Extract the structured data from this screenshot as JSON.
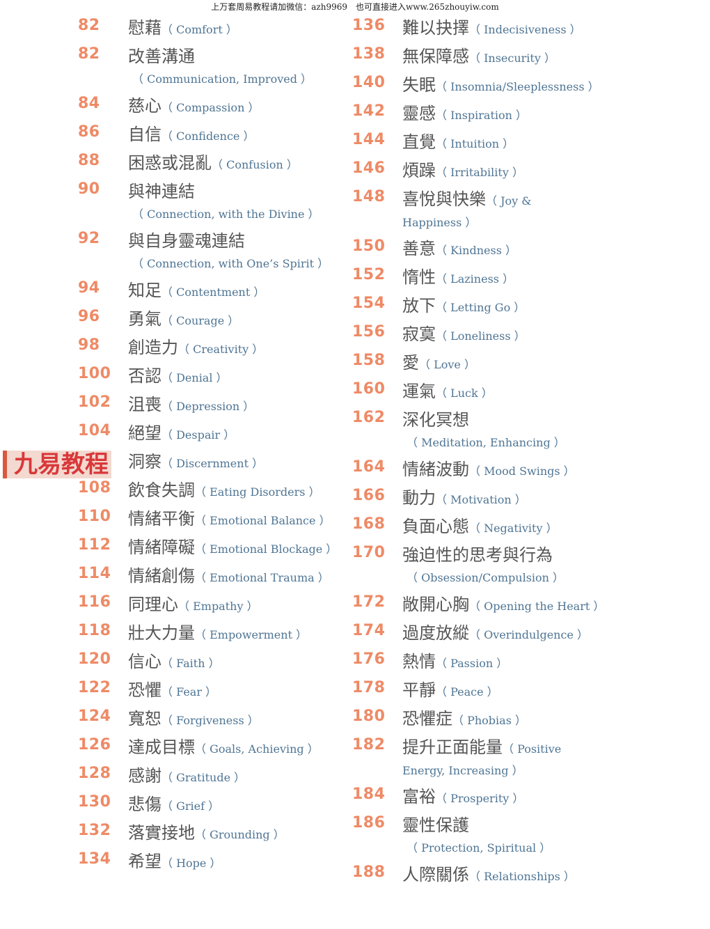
{
  "header": "上万套周易教程请加微信：azh9969　也可直接进入www.265zhouyiw.com",
  "watermark": "九易教程",
  "colors": {
    "number": "#ee8a66",
    "chinese": "#555555",
    "english": "#4f7594"
  },
  "left": [
    {
      "num": "82",
      "zh": "慰藉",
      "en": "（ Comfort ）"
    },
    {
      "num": "82",
      "zh": "改善溝通",
      "en": "（ Communication, Improved ）",
      "below": true
    },
    {
      "num": "84",
      "zh": "慈心",
      "en": "（ Compassion ）"
    },
    {
      "num": "86",
      "zh": "自信",
      "en": "（ Confidence ）"
    },
    {
      "num": "88",
      "zh": "困惑或混亂",
      "en": "（ Confusion ）"
    },
    {
      "num": "90",
      "zh": "與神連結",
      "en": "（ Connection, with the Divine ）",
      "below": true
    },
    {
      "num": "92",
      "zh": "與自身靈魂連結",
      "en": "（ Connection, with One’s Spirit ）",
      "below": true
    },
    {
      "num": "94",
      "zh": "知足",
      "en": "（ Contentment ）"
    },
    {
      "num": "96",
      "zh": "勇氣",
      "en": "（ Courage ）"
    },
    {
      "num": "98",
      "zh": "創造力",
      "en": "（ Creativity ）"
    },
    {
      "num": "100",
      "zh": "否認",
      "en": "（ Denial ）"
    },
    {
      "num": "102",
      "zh": "沮喪",
      "en": "（ Depression ）"
    },
    {
      "num": "104",
      "zh": "絕望",
      "en": "（ Despair ）"
    },
    {
      "num": "",
      "zh": "洞察",
      "en": "（ Discernment ）"
    },
    {
      "num": "108",
      "zh": "飲食失調",
      "en": "（ Eating Disorders ）"
    },
    {
      "num": "110",
      "zh": "情緒平衡",
      "en": "（ Emotional Balance ）"
    },
    {
      "num": "112",
      "zh": "情緒障礙",
      "en": "（ Emotional Blockage ）"
    },
    {
      "num": "114",
      "zh": "情緒創傷",
      "en": "（ Emotional Trauma ）"
    },
    {
      "num": "116",
      "zh": "同理心",
      "en": "（ Empathy ）"
    },
    {
      "num": "118",
      "zh": "壯大力量",
      "en": "（ Empowerment ）"
    },
    {
      "num": "120",
      "zh": "信心",
      "en": "（ Faith ）"
    },
    {
      "num": "122",
      "zh": "恐懼",
      "en": "（ Fear ）"
    },
    {
      "num": "124",
      "zh": "寬恕",
      "en": "（ Forgiveness ）"
    },
    {
      "num": "126",
      "zh": "達成目標",
      "en": "（ Goals, Achieving ）"
    },
    {
      "num": "128",
      "zh": "感謝",
      "en": "（ Gratitude ）"
    },
    {
      "num": "130",
      "zh": "悲傷",
      "en": "（ Grief ）"
    },
    {
      "num": "132",
      "zh": "落實接地",
      "en": "（ Grounding ）"
    },
    {
      "num": "134",
      "zh": "希望",
      "en": "（ Hope ）"
    }
  ],
  "right": [
    {
      "num": "136",
      "zh": "難以抉擇",
      "en": "（ Indecisiveness ）"
    },
    {
      "num": "138",
      "zh": "無保障感",
      "en": "（ Insecurity ）"
    },
    {
      "num": "140",
      "zh": "失眠",
      "en": "（ Insomnia/Sleeplessness ）"
    },
    {
      "num": "142",
      "zh": "靈感",
      "en": "（ Inspiration ）"
    },
    {
      "num": "144",
      "zh": "直覺",
      "en": "（ Intuition ）"
    },
    {
      "num": "146",
      "zh": "煩躁",
      "en": "（ Irritability ）"
    },
    {
      "num": "148",
      "zh": "喜悅與快樂",
      "en": "（ Joy &\nHappiness ）",
      "wrapped": true
    },
    {
      "num": "150",
      "zh": "善意",
      "en": "（ Kindness ）"
    },
    {
      "num": "152",
      "zh": "惰性",
      "en": "（ Laziness ）"
    },
    {
      "num": "154",
      "zh": "放下",
      "en": "（ Letting Go ）"
    },
    {
      "num": "156",
      "zh": "寂寞",
      "en": "（ Loneliness ）"
    },
    {
      "num": "158",
      "zh": "愛",
      "en": "（ Love ）"
    },
    {
      "num": "160",
      "zh": "運氣",
      "en": "（ Luck ）"
    },
    {
      "num": "162",
      "zh": "深化冥想",
      "en": "（ Meditation, Enhancing ）",
      "below": true
    },
    {
      "num": "164",
      "zh": "情緒波動",
      "en": "（ Mood Swings ）"
    },
    {
      "num": "166",
      "zh": "動力",
      "en": "（ Motivation ）"
    },
    {
      "num": "168",
      "zh": "負面心態",
      "en": "（ Negativity ）"
    },
    {
      "num": "170",
      "zh": "強迫性的思考與行為",
      "en": "（ Obsession/Compulsion ）",
      "below": true
    },
    {
      "num": "172",
      "zh": "敞開心胸",
      "en": "（ Opening the Heart ）"
    },
    {
      "num": "174",
      "zh": "過度放縱",
      "en": "（ Overindulgence ）"
    },
    {
      "num": "176",
      "zh": "熱情",
      "en": "（ Passion ）"
    },
    {
      "num": "178",
      "zh": "平靜",
      "en": "（ Peace ）"
    },
    {
      "num": "180",
      "zh": "恐懼症",
      "en": "（ Phobias ）"
    },
    {
      "num": "182",
      "zh": "提升正面能量",
      "en": "（ Positive\nEnergy, Increasing ）",
      "wrapped": true
    },
    {
      "num": "184",
      "zh": "富裕",
      "en": "（ Prosperity ）"
    },
    {
      "num": "186",
      "zh": "靈性保護",
      "en": "（ Protection, Spiritual ）",
      "below": true
    },
    {
      "num": "188",
      "zh": "人際關係",
      "en": "（ Relationships ）"
    }
  ]
}
